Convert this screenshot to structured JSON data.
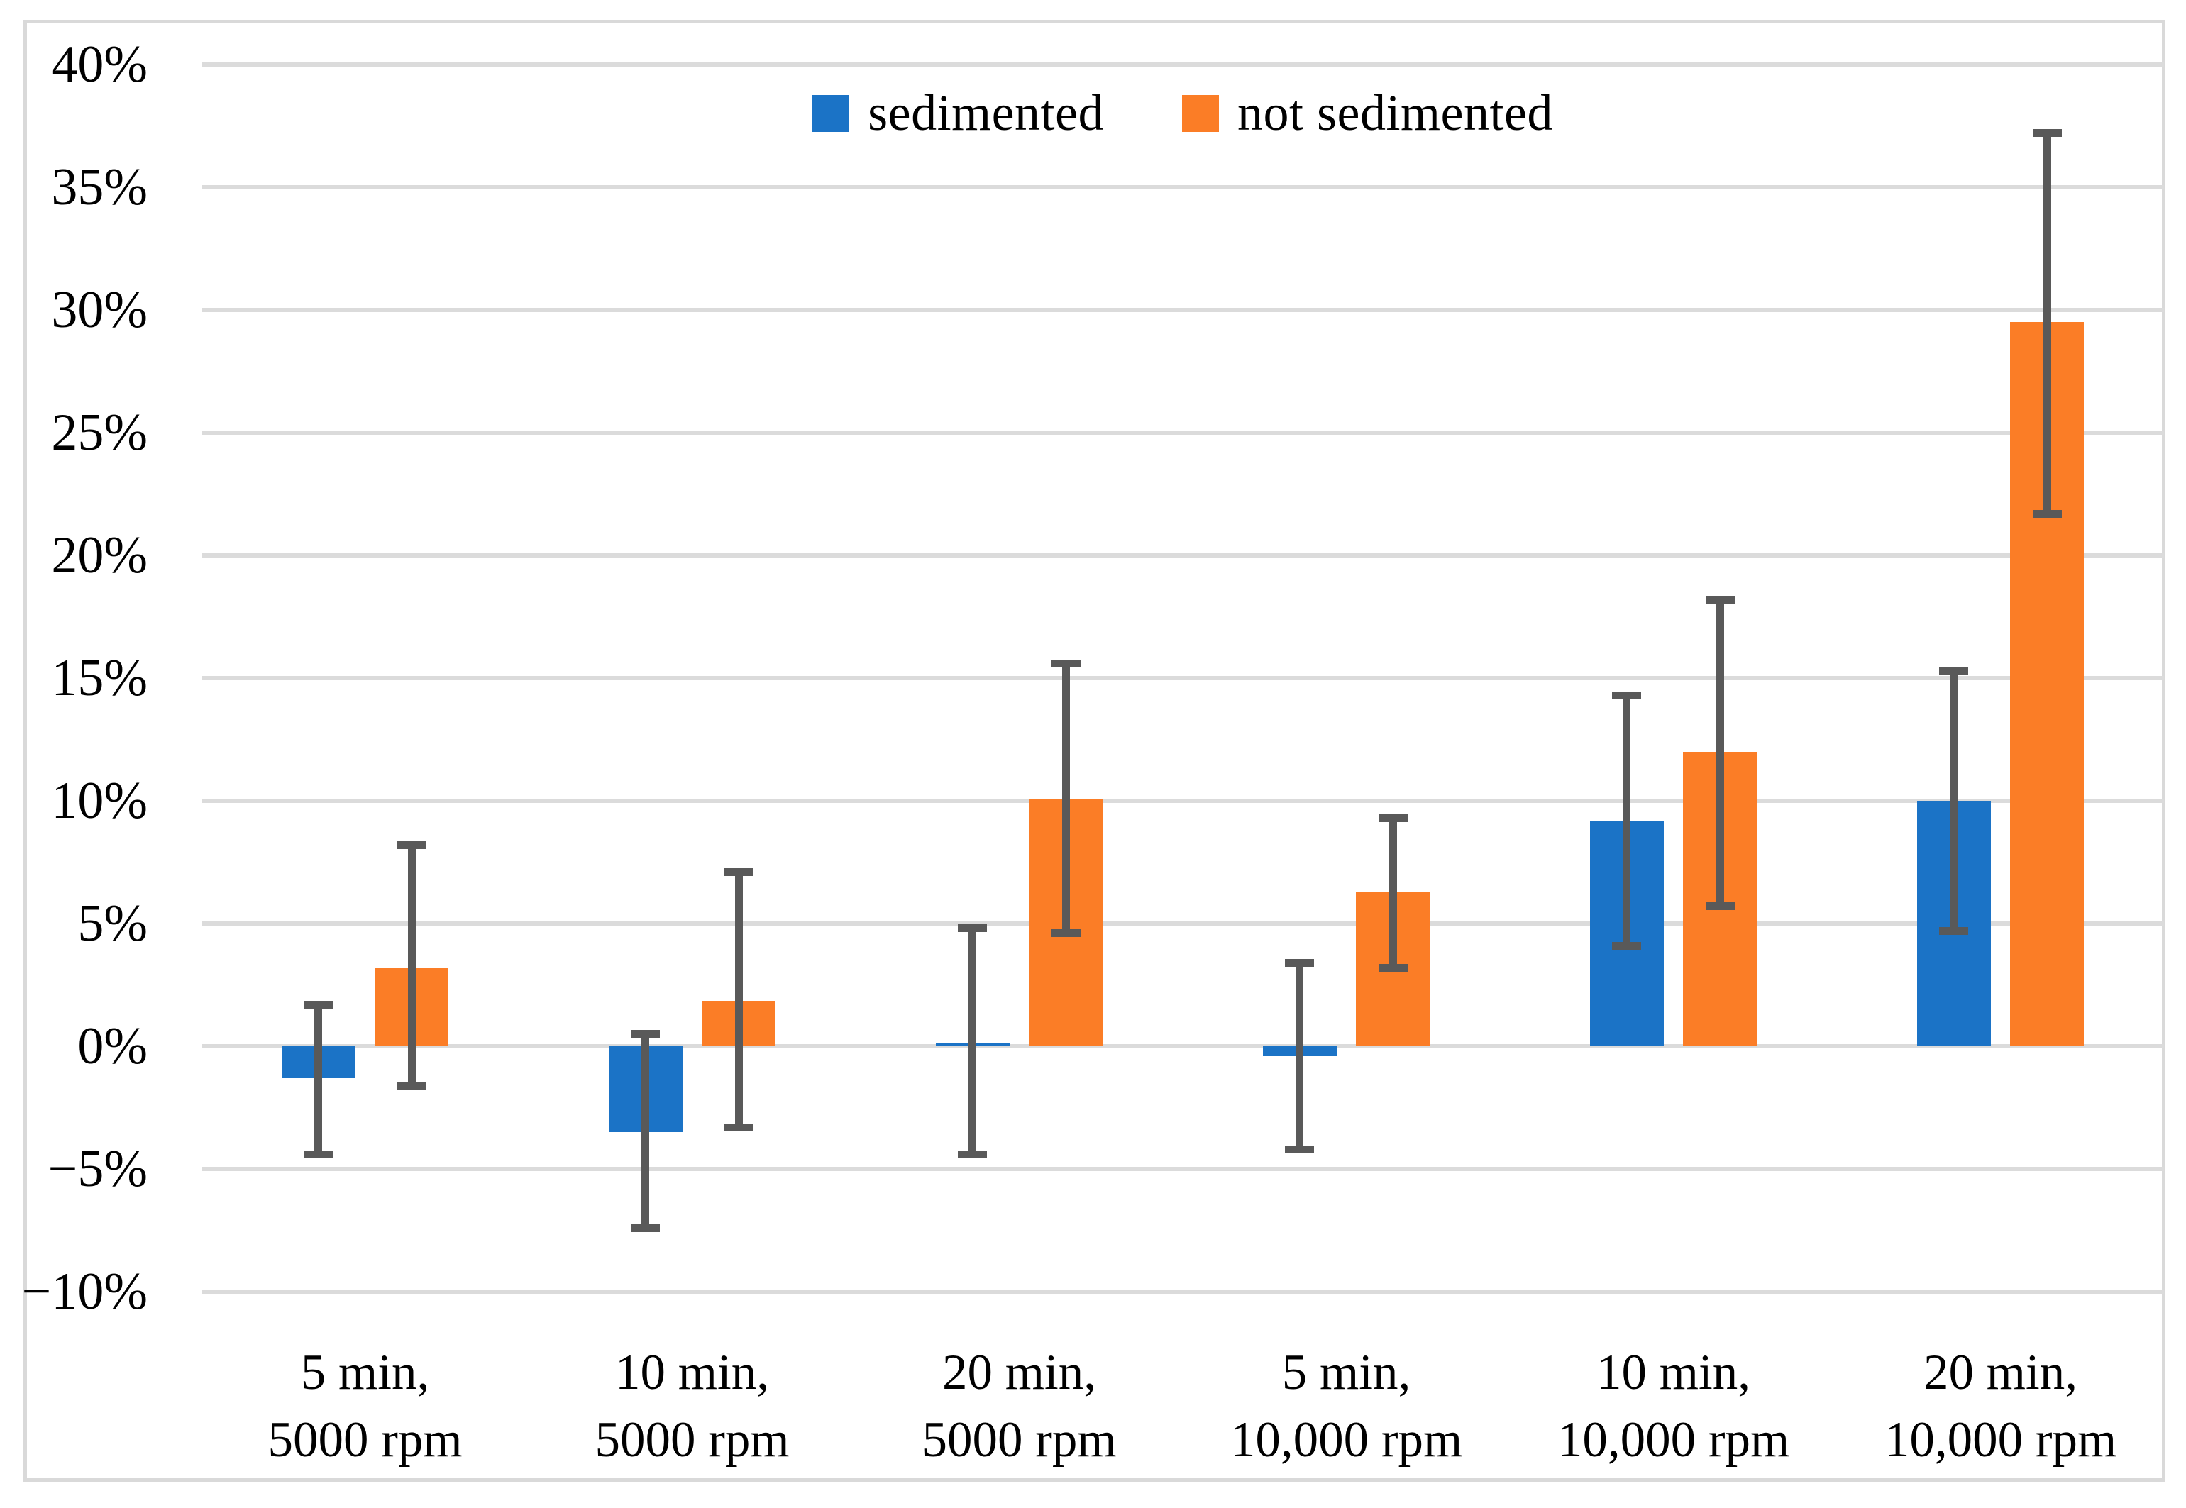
{
  "chart_data": {
    "type": "bar",
    "title": "",
    "xlabel": "",
    "ylabel": "",
    "categories": [
      [
        "5 min,",
        "5000 rpm"
      ],
      [
        "10 min,",
        "5000 rpm"
      ],
      [
        "20 min,",
        "5000 rpm"
      ],
      [
        "5 min,",
        "10,000 rpm"
      ],
      [
        "10 min,",
        "10,000 rpm"
      ],
      [
        "20 min,",
        "10,000 rpm"
      ]
    ],
    "series": [
      {
        "name": "sedimented",
        "color": "#1B73C6",
        "values": [
          -1.3,
          -3.5,
          0.15,
          -0.4,
          9.2,
          10.0
        ],
        "err_low": [
          -4.4,
          -7.4,
          -4.4,
          -4.2,
          4.1,
          4.7
        ],
        "err_high": [
          1.7,
          0.5,
          4.8,
          3.4,
          14.3,
          15.3
        ]
      },
      {
        "name": "not sedimented",
        "color": "#FB7D26",
        "values": [
          3.2,
          1.85,
          10.1,
          6.3,
          12.0,
          29.5
        ],
        "err_low": [
          -1.6,
          -3.3,
          4.6,
          3.2,
          5.7,
          21.7
        ],
        "err_high": [
          8.2,
          7.1,
          15.6,
          9.3,
          18.2,
          37.2
        ]
      }
    ],
    "y_axis": {
      "min": -10,
      "max": 40,
      "step": 5,
      "tick_labels": [
        "40%",
        "35%",
        "30%",
        "25%",
        "20%",
        "15%",
        "10%",
        "5%",
        "0%",
        "−5%",
        "−10%"
      ]
    },
    "grid": true,
    "legend_position": "top-center",
    "colors": {
      "error_bar": "#595959",
      "gridline": "#DBDBDB",
      "frame": "#D9D9D9",
      "background": "#FFFFFF",
      "text": "#000000"
    }
  }
}
